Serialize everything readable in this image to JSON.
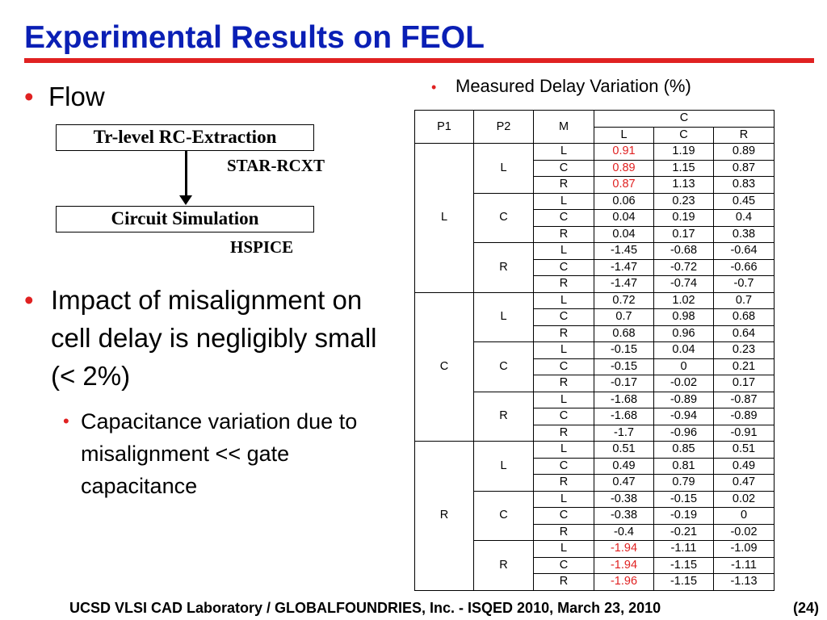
{
  "title": "Experimental Results on FEOL",
  "left": {
    "flow_bullet": "Flow",
    "flow_steps": [
      {
        "box": "Tr-level RC-Extraction",
        "tool": "STAR-RCXT"
      },
      {
        "box": "Circuit Simulation",
        "tool": "HSPICE"
      }
    ],
    "impact_bullet": "Impact of misalignment on cell delay is negligibly small (< 2%)",
    "sub_bullet": "Capacitance variation due to misalignment << gate capacitance"
  },
  "table": {
    "heading": "Measured Delay Variation (%)",
    "headers": {
      "p1": "P1",
      "p2": "P2",
      "m": "M",
      "group": "C",
      "cols": [
        "L",
        "C",
        "R"
      ]
    },
    "highlight_color": "#e02121",
    "groups": [
      {
        "p1": "L",
        "sub": [
          {
            "p2": "L",
            "rows": [
              {
                "m": "L",
                "v": [
                  "0.91",
                  "1.19",
                  "0.89"
                ],
                "hl": [
                  true,
                  false,
                  false
                ]
              },
              {
                "m": "C",
                "v": [
                  "0.89",
                  "1.15",
                  "0.87"
                ],
                "hl": [
                  true,
                  false,
                  false
                ]
              },
              {
                "m": "R",
                "v": [
                  "0.87",
                  "1.13",
                  "0.83"
                ],
                "hl": [
                  true,
                  false,
                  false
                ]
              }
            ]
          },
          {
            "p2": "C",
            "rows": [
              {
                "m": "L",
                "v": [
                  "0.06",
                  "0.23",
                  "0.45"
                ]
              },
              {
                "m": "C",
                "v": [
                  "0.04",
                  "0.19",
                  "0.4"
                ]
              },
              {
                "m": "R",
                "v": [
                  "0.04",
                  "0.17",
                  "0.38"
                ]
              }
            ]
          },
          {
            "p2": "R",
            "rows": [
              {
                "m": "L",
                "v": [
                  "-1.45",
                  "-0.68",
                  "-0.64"
                ]
              },
              {
                "m": "C",
                "v": [
                  "-1.47",
                  "-0.72",
                  "-0.66"
                ]
              },
              {
                "m": "R",
                "v": [
                  "-1.47",
                  "-0.74",
                  "-0.7"
                ]
              }
            ]
          }
        ]
      },
      {
        "p1": "C",
        "sub": [
          {
            "p2": "L",
            "rows": [
              {
                "m": "L",
                "v": [
                  "0.72",
                  "1.02",
                  "0.7"
                ]
              },
              {
                "m": "C",
                "v": [
                  "0.7",
                  "0.98",
                  "0.68"
                ]
              },
              {
                "m": "R",
                "v": [
                  "0.68",
                  "0.96",
                  "0.64"
                ]
              }
            ]
          },
          {
            "p2": "C",
            "rows": [
              {
                "m": "L",
                "v": [
                  "-0.15",
                  "0.04",
                  "0.23"
                ]
              },
              {
                "m": "C",
                "v": [
                  "-0.15",
                  "0",
                  "0.21"
                ]
              },
              {
                "m": "R",
                "v": [
                  "-0.17",
                  "-0.02",
                  "0.17"
                ]
              }
            ]
          },
          {
            "p2": "R",
            "rows": [
              {
                "m": "L",
                "v": [
                  "-1.68",
                  "-0.89",
                  "-0.87"
                ]
              },
              {
                "m": "C",
                "v": [
                  "-1.68",
                  "-0.94",
                  "-0.89"
                ]
              },
              {
                "m": "R",
                "v": [
                  "-1.7",
                  "-0.96",
                  "-0.91"
                ]
              }
            ]
          }
        ]
      },
      {
        "p1": "R",
        "sub": [
          {
            "p2": "L",
            "rows": [
              {
                "m": "L",
                "v": [
                  "0.51",
                  "0.85",
                  "0.51"
                ]
              },
              {
                "m": "C",
                "v": [
                  "0.49",
                  "0.81",
                  "0.49"
                ]
              },
              {
                "m": "R",
                "v": [
                  "0.47",
                  "0.79",
                  "0.47"
                ]
              }
            ]
          },
          {
            "p2": "C",
            "rows": [
              {
                "m": "L",
                "v": [
                  "-0.38",
                  "-0.15",
                  "0.02"
                ]
              },
              {
                "m": "C",
                "v": [
                  "-0.38",
                  "-0.19",
                  "0"
                ]
              },
              {
                "m": "R",
                "v": [
                  "-0.4",
                  "-0.21",
                  "-0.02"
                ]
              }
            ]
          },
          {
            "p2": "R",
            "rows": [
              {
                "m": "L",
                "v": [
                  "-1.94",
                  "-1.11",
                  "-1.09"
                ],
                "hl": [
                  true,
                  false,
                  false
                ]
              },
              {
                "m": "C",
                "v": [
                  "-1.94",
                  "-1.15",
                  "-1.11"
                ],
                "hl": [
                  true,
                  false,
                  false
                ]
              },
              {
                "m": "R",
                "v": [
                  "-1.96",
                  "-1.15",
                  "-1.13"
                ],
                "hl": [
                  true,
                  false,
                  false
                ]
              }
            ]
          }
        ]
      }
    ]
  },
  "footer": {
    "text": "UCSD VLSI CAD Laboratory  /   GLOBALFOUNDRIES, Inc.   - ISQED 2010,   March 23, 2010",
    "page": "(24)"
  }
}
